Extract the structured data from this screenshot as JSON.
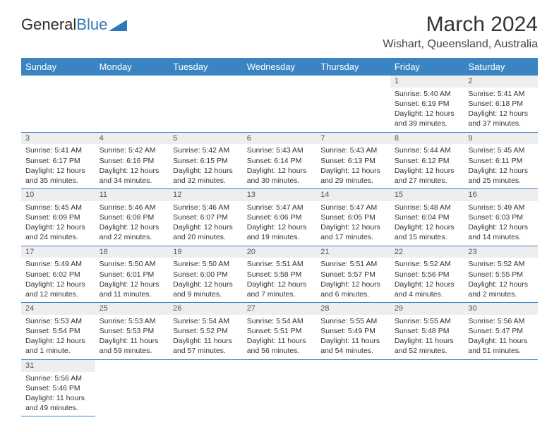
{
  "logo": {
    "text_general": "General",
    "text_blue": "Blue",
    "triangle_color": "#2f78b7"
  },
  "header": {
    "title": "March 2024",
    "subtitle": "Wishart, Queensland, Australia"
  },
  "colors": {
    "header_bg": "#3b84c4",
    "header_text": "#ffffff",
    "daynum_bg": "#eeeeee",
    "divider": "#3b84c4",
    "background": "#ffffff"
  },
  "weekdays": [
    "Sunday",
    "Monday",
    "Tuesday",
    "Wednesday",
    "Thursday",
    "Friday",
    "Saturday"
  ],
  "cells": [
    {
      "n": "",
      "l1": "",
      "l2": "",
      "l3": "",
      "l4": ""
    },
    {
      "n": "",
      "l1": "",
      "l2": "",
      "l3": "",
      "l4": ""
    },
    {
      "n": "",
      "l1": "",
      "l2": "",
      "l3": "",
      "l4": ""
    },
    {
      "n": "",
      "l1": "",
      "l2": "",
      "l3": "",
      "l4": ""
    },
    {
      "n": "",
      "l1": "",
      "l2": "",
      "l3": "",
      "l4": ""
    },
    {
      "n": "1",
      "l1": "Sunrise: 5:40 AM",
      "l2": "Sunset: 6:19 PM",
      "l3": "Daylight: 12 hours",
      "l4": "and 39 minutes."
    },
    {
      "n": "2",
      "l1": "Sunrise: 5:41 AM",
      "l2": "Sunset: 6:18 PM",
      "l3": "Daylight: 12 hours",
      "l4": "and 37 minutes."
    },
    {
      "n": "3",
      "l1": "Sunrise: 5:41 AM",
      "l2": "Sunset: 6:17 PM",
      "l3": "Daylight: 12 hours",
      "l4": "and 35 minutes."
    },
    {
      "n": "4",
      "l1": "Sunrise: 5:42 AM",
      "l2": "Sunset: 6:16 PM",
      "l3": "Daylight: 12 hours",
      "l4": "and 34 minutes."
    },
    {
      "n": "5",
      "l1": "Sunrise: 5:42 AM",
      "l2": "Sunset: 6:15 PM",
      "l3": "Daylight: 12 hours",
      "l4": "and 32 minutes."
    },
    {
      "n": "6",
      "l1": "Sunrise: 5:43 AM",
      "l2": "Sunset: 6:14 PM",
      "l3": "Daylight: 12 hours",
      "l4": "and 30 minutes."
    },
    {
      "n": "7",
      "l1": "Sunrise: 5:43 AM",
      "l2": "Sunset: 6:13 PM",
      "l3": "Daylight: 12 hours",
      "l4": "and 29 minutes."
    },
    {
      "n": "8",
      "l1": "Sunrise: 5:44 AM",
      "l2": "Sunset: 6:12 PM",
      "l3": "Daylight: 12 hours",
      "l4": "and 27 minutes."
    },
    {
      "n": "9",
      "l1": "Sunrise: 5:45 AM",
      "l2": "Sunset: 6:11 PM",
      "l3": "Daylight: 12 hours",
      "l4": "and 25 minutes."
    },
    {
      "n": "10",
      "l1": "Sunrise: 5:45 AM",
      "l2": "Sunset: 6:09 PM",
      "l3": "Daylight: 12 hours",
      "l4": "and 24 minutes."
    },
    {
      "n": "11",
      "l1": "Sunrise: 5:46 AM",
      "l2": "Sunset: 6:08 PM",
      "l3": "Daylight: 12 hours",
      "l4": "and 22 minutes."
    },
    {
      "n": "12",
      "l1": "Sunrise: 5:46 AM",
      "l2": "Sunset: 6:07 PM",
      "l3": "Daylight: 12 hours",
      "l4": "and 20 minutes."
    },
    {
      "n": "13",
      "l1": "Sunrise: 5:47 AM",
      "l2": "Sunset: 6:06 PM",
      "l3": "Daylight: 12 hours",
      "l4": "and 19 minutes."
    },
    {
      "n": "14",
      "l1": "Sunrise: 5:47 AM",
      "l2": "Sunset: 6:05 PM",
      "l3": "Daylight: 12 hours",
      "l4": "and 17 minutes."
    },
    {
      "n": "15",
      "l1": "Sunrise: 5:48 AM",
      "l2": "Sunset: 6:04 PM",
      "l3": "Daylight: 12 hours",
      "l4": "and 15 minutes."
    },
    {
      "n": "16",
      "l1": "Sunrise: 5:49 AM",
      "l2": "Sunset: 6:03 PM",
      "l3": "Daylight: 12 hours",
      "l4": "and 14 minutes."
    },
    {
      "n": "17",
      "l1": "Sunrise: 5:49 AM",
      "l2": "Sunset: 6:02 PM",
      "l3": "Daylight: 12 hours",
      "l4": "and 12 minutes."
    },
    {
      "n": "18",
      "l1": "Sunrise: 5:50 AM",
      "l2": "Sunset: 6:01 PM",
      "l3": "Daylight: 12 hours",
      "l4": "and 11 minutes."
    },
    {
      "n": "19",
      "l1": "Sunrise: 5:50 AM",
      "l2": "Sunset: 6:00 PM",
      "l3": "Daylight: 12 hours",
      "l4": "and 9 minutes."
    },
    {
      "n": "20",
      "l1": "Sunrise: 5:51 AM",
      "l2": "Sunset: 5:58 PM",
      "l3": "Daylight: 12 hours",
      "l4": "and 7 minutes."
    },
    {
      "n": "21",
      "l1": "Sunrise: 5:51 AM",
      "l2": "Sunset: 5:57 PM",
      "l3": "Daylight: 12 hours",
      "l4": "and 6 minutes."
    },
    {
      "n": "22",
      "l1": "Sunrise: 5:52 AM",
      "l2": "Sunset: 5:56 PM",
      "l3": "Daylight: 12 hours",
      "l4": "and 4 minutes."
    },
    {
      "n": "23",
      "l1": "Sunrise: 5:52 AM",
      "l2": "Sunset: 5:55 PM",
      "l3": "Daylight: 12 hours",
      "l4": "and 2 minutes."
    },
    {
      "n": "24",
      "l1": "Sunrise: 5:53 AM",
      "l2": "Sunset: 5:54 PM",
      "l3": "Daylight: 12 hours",
      "l4": "and 1 minute."
    },
    {
      "n": "25",
      "l1": "Sunrise: 5:53 AM",
      "l2": "Sunset: 5:53 PM",
      "l3": "Daylight: 11 hours",
      "l4": "and 59 minutes."
    },
    {
      "n": "26",
      "l1": "Sunrise: 5:54 AM",
      "l2": "Sunset: 5:52 PM",
      "l3": "Daylight: 11 hours",
      "l4": "and 57 minutes."
    },
    {
      "n": "27",
      "l1": "Sunrise: 5:54 AM",
      "l2": "Sunset: 5:51 PM",
      "l3": "Daylight: 11 hours",
      "l4": "and 56 minutes."
    },
    {
      "n": "28",
      "l1": "Sunrise: 5:55 AM",
      "l2": "Sunset: 5:49 PM",
      "l3": "Daylight: 11 hours",
      "l4": "and 54 minutes."
    },
    {
      "n": "29",
      "l1": "Sunrise: 5:55 AM",
      "l2": "Sunset: 5:48 PM",
      "l3": "Daylight: 11 hours",
      "l4": "and 52 minutes."
    },
    {
      "n": "30",
      "l1": "Sunrise: 5:56 AM",
      "l2": "Sunset: 5:47 PM",
      "l3": "Daylight: 11 hours",
      "l4": "and 51 minutes."
    },
    {
      "n": "31",
      "l1": "Sunrise: 5:56 AM",
      "l2": "Sunset: 5:46 PM",
      "l3": "Daylight: 11 hours",
      "l4": "and 49 minutes."
    },
    {
      "n": "",
      "l1": "",
      "l2": "",
      "l3": "",
      "l4": ""
    },
    {
      "n": "",
      "l1": "",
      "l2": "",
      "l3": "",
      "l4": ""
    },
    {
      "n": "",
      "l1": "",
      "l2": "",
      "l3": "",
      "l4": ""
    },
    {
      "n": "",
      "l1": "",
      "l2": "",
      "l3": "",
      "l4": ""
    },
    {
      "n": "",
      "l1": "",
      "l2": "",
      "l3": "",
      "l4": ""
    },
    {
      "n": "",
      "l1": "",
      "l2": "",
      "l3": "",
      "l4": ""
    }
  ]
}
